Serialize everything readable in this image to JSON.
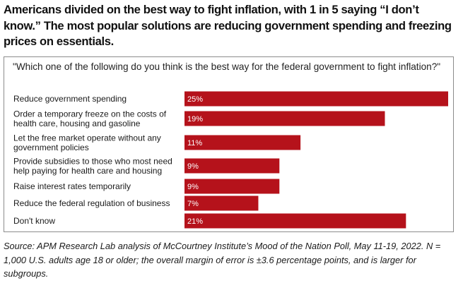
{
  "headline": "Americans divided on the best way to fight inflation, with 1 in 5 saying “I don’t know.” The most popular solutions are reducing government spending and freezing prices on essentials.",
  "question": "\"Which one of the following do you think is the best way for the federal government to fight inflation?\"",
  "source": "Source: APM Research Lab analysis of McCourtney Institute’s Mood of the Nation Poll, May 11-19, 2022. N = 1,000 U.S. adults age 18 or older; the overall margin of error is ±3.6 percentage points, and is larger for subgroups.",
  "chart_data": {
    "type": "bar",
    "orientation": "horizontal",
    "bar_color": "#b5121b",
    "value_suffix": "%",
    "categories": [
      [
        "Reduce government spending"
      ],
      [
        "Order a temporary freeze on the costs of",
        "health care, housing and gasoline"
      ],
      [
        "Let the free market operate without any",
        "government policies"
      ],
      [
        "Provide subsidies to those who most need",
        "help paying for health care and housing"
      ],
      [
        "Raise interest rates temporarily"
      ],
      [
        "Reduce the federal regulation of business"
      ],
      [
        "Don't know"
      ]
    ],
    "values": [
      25,
      19,
      11,
      9,
      9,
      7,
      21
    ],
    "xlim": [
      0,
      25
    ],
    "grid": false,
    "legend": "none"
  }
}
